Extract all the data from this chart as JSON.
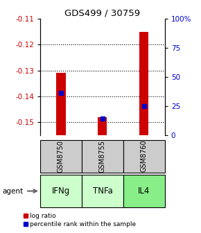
{
  "title": "GDS499 / 30759",
  "samples": [
    "GSM8750",
    "GSM8755",
    "GSM8760"
  ],
  "agents": [
    "IFNg",
    "TNFa",
    "IL4"
  ],
  "log_ratios": [
    -0.131,
    -0.148,
    -0.115
  ],
  "percentile_ranks_pct": [
    36,
    14,
    25
  ],
  "ylim_left": [
    -0.155,
    -0.11
  ],
  "ylim_right": [
    0,
    100
  ],
  "yticks_left": [
    -0.15,
    -0.14,
    -0.13,
    -0.12,
    -0.11
  ],
  "yticks_right": [
    0,
    25,
    50,
    75,
    100
  ],
  "bar_color": "#cc0000",
  "percentile_color": "#0000cc",
  "agent_colors": [
    "#ccffcc",
    "#ccffcc",
    "#88ee88"
  ],
  "sample_bg": "#cccccc",
  "legend_labels": [
    "log ratio",
    "percentile rank within the sample"
  ],
  "left_axis_color": "#cc0000",
  "right_axis_color": "#0000cc"
}
